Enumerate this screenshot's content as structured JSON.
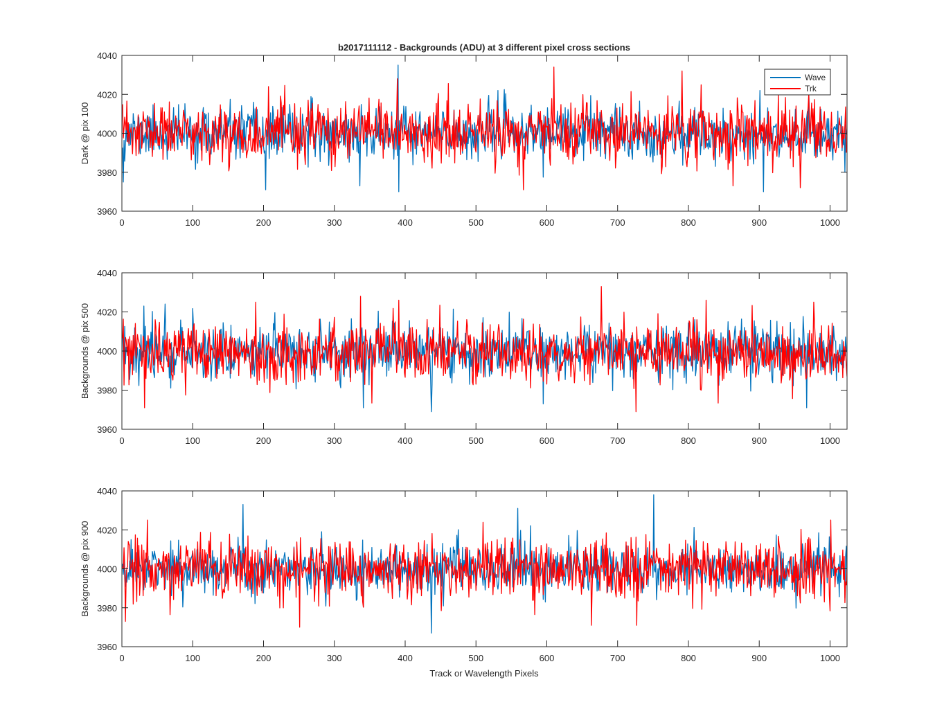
{
  "chart_data": {
    "type": "line",
    "title": "b2017111112 - Backgrounds (ADU) at 3 different pixel cross sections",
    "xlabel": "Track or Wavelength Pixels",
    "legend": {
      "placement": "top-right",
      "entries": [
        "Wave",
        "Trk"
      ]
    },
    "series_colors": {
      "Wave": "#0072BD",
      "Trk": "#FF0000"
    },
    "x_count": 1024,
    "xlim": [
      0,
      1024
    ],
    "xticks": [
      0,
      100,
      200,
      300,
      400,
      500,
      600,
      700,
      800,
      900,
      1000
    ],
    "ylim": [
      3960,
      4040
    ],
    "yticks": [
      3960,
      3980,
      4000,
      4020,
      4040
    ],
    "panels": [
      {
        "ylabel": "Dark @ pix 100",
        "series": [
          {
            "name": "Wave",
            "mean": 4000,
            "sd": 6.5,
            "seed": 11,
            "spikes": [
              [
                1,
                3975
              ],
              [
                202,
                3971
              ],
              [
                335,
                3973
              ],
              [
                389,
                4035
              ],
              [
                390,
                3970
              ],
              [
                530,
                4022
              ],
              [
                900,
                4022
              ],
              [
                905,
                3970
              ],
              [
                1020,
                3980
              ]
            ]
          },
          {
            "name": "Trk",
            "mean": 4000,
            "sd": 7.5,
            "seed": 23,
            "spikes": [
              [
                206,
                4024
              ],
              [
                388,
                4028
              ],
              [
                566,
                3971
              ],
              [
                609,
                4034
              ],
              [
                790,
                4032
              ],
              [
                862,
                3973
              ],
              [
                957,
                3972
              ]
            ]
          }
        ]
      },
      {
        "ylabel": "Backgrounds @ pix 500",
        "series": [
          {
            "name": "Wave",
            "mean": 4000,
            "sd": 7.0,
            "seed": 37,
            "spikes": [
              [
                30,
                4023
              ],
              [
                60,
                4024
              ],
              [
                340,
                3971
              ],
              [
                436,
                3969
              ],
              [
                594,
                3973
              ],
              [
                966,
                3971
              ]
            ]
          },
          {
            "name": "Trk",
            "mean": 3999,
            "sd": 7.5,
            "seed": 53,
            "spikes": [
              [
                31,
                3971
              ],
              [
                188,
                4025
              ],
              [
                336,
                4028
              ],
              [
                390,
                4026
              ],
              [
                676,
                4033
              ],
              [
                725,
                3969
              ],
              [
                824,
                4026
              ],
              [
                976,
                4025
              ]
            ]
          }
        ]
      },
      {
        "ylabel": "Backgrounds @ pix 900",
        "series": [
          {
            "name": "Wave",
            "mean": 4000,
            "sd": 6.5,
            "seed": 71,
            "spikes": [
              [
                170,
                4033
              ],
              [
                436,
                3967
              ],
              [
                558,
                4031
              ],
              [
                750,
                4038
              ],
              [
                1020,
                3985
              ]
            ]
          },
          {
            "name": "Trk",
            "mean": 4000,
            "sd": 7.5,
            "seed": 89,
            "spikes": [
              [
                4,
                3973
              ],
              [
                35,
                4025
              ],
              [
                250,
                3970
              ],
              [
                662,
                3971
              ],
              [
                726,
                3971
              ],
              [
                1000,
                4025
              ]
            ]
          }
        ]
      }
    ]
  }
}
